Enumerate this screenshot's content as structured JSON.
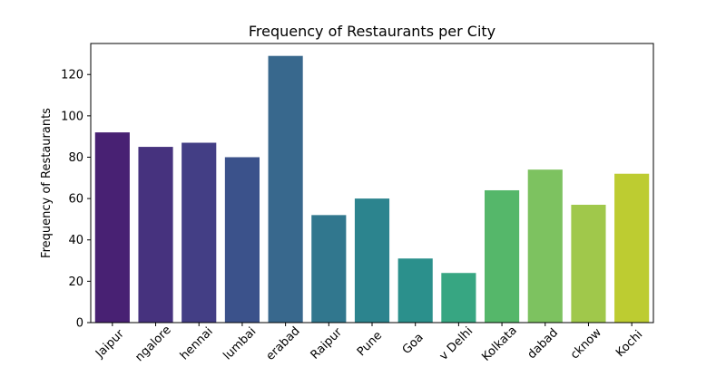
{
  "chart_data": {
    "type": "bar",
    "title": "Frequency of Restaurants per City",
    "xlabel": "",
    "ylabel": "Frequency of Restaurants",
    "ylim": [
      0,
      135
    ],
    "yticks": [
      0,
      20,
      40,
      60,
      80,
      100,
      120
    ],
    "grid": false,
    "categories": [
      "Jaipur",
      "Bangalore",
      "Chennai",
      "Mumbai",
      "Hyderabad",
      "Raipur",
      "Pune",
      "Goa",
      "New Delhi",
      "Kolkata",
      "Ahmedabad",
      "Lucknow",
      "Kochi"
    ],
    "tick_labels_visible": [
      "Jaipur",
      "ngalore",
      "hennai",
      "lumbai",
      "erabad",
      "Raipur",
      "Pune",
      "Goa",
      "v Delhi",
      "Kolkata",
      "dabad",
      "cknow",
      "Kochi"
    ],
    "values": [
      92,
      85,
      87,
      80,
      129,
      52,
      60,
      31,
      24,
      64,
      74,
      57,
      72
    ],
    "colors": [
      "#482173",
      "#46327e",
      "#433e85",
      "#3b528b",
      "#38688d",
      "#31778e",
      "#2c848e",
      "#2b908c",
      "#37a682",
      "#55b76a",
      "#7dc260",
      "#a0c84b",
      "#bdcc31"
    ]
  }
}
